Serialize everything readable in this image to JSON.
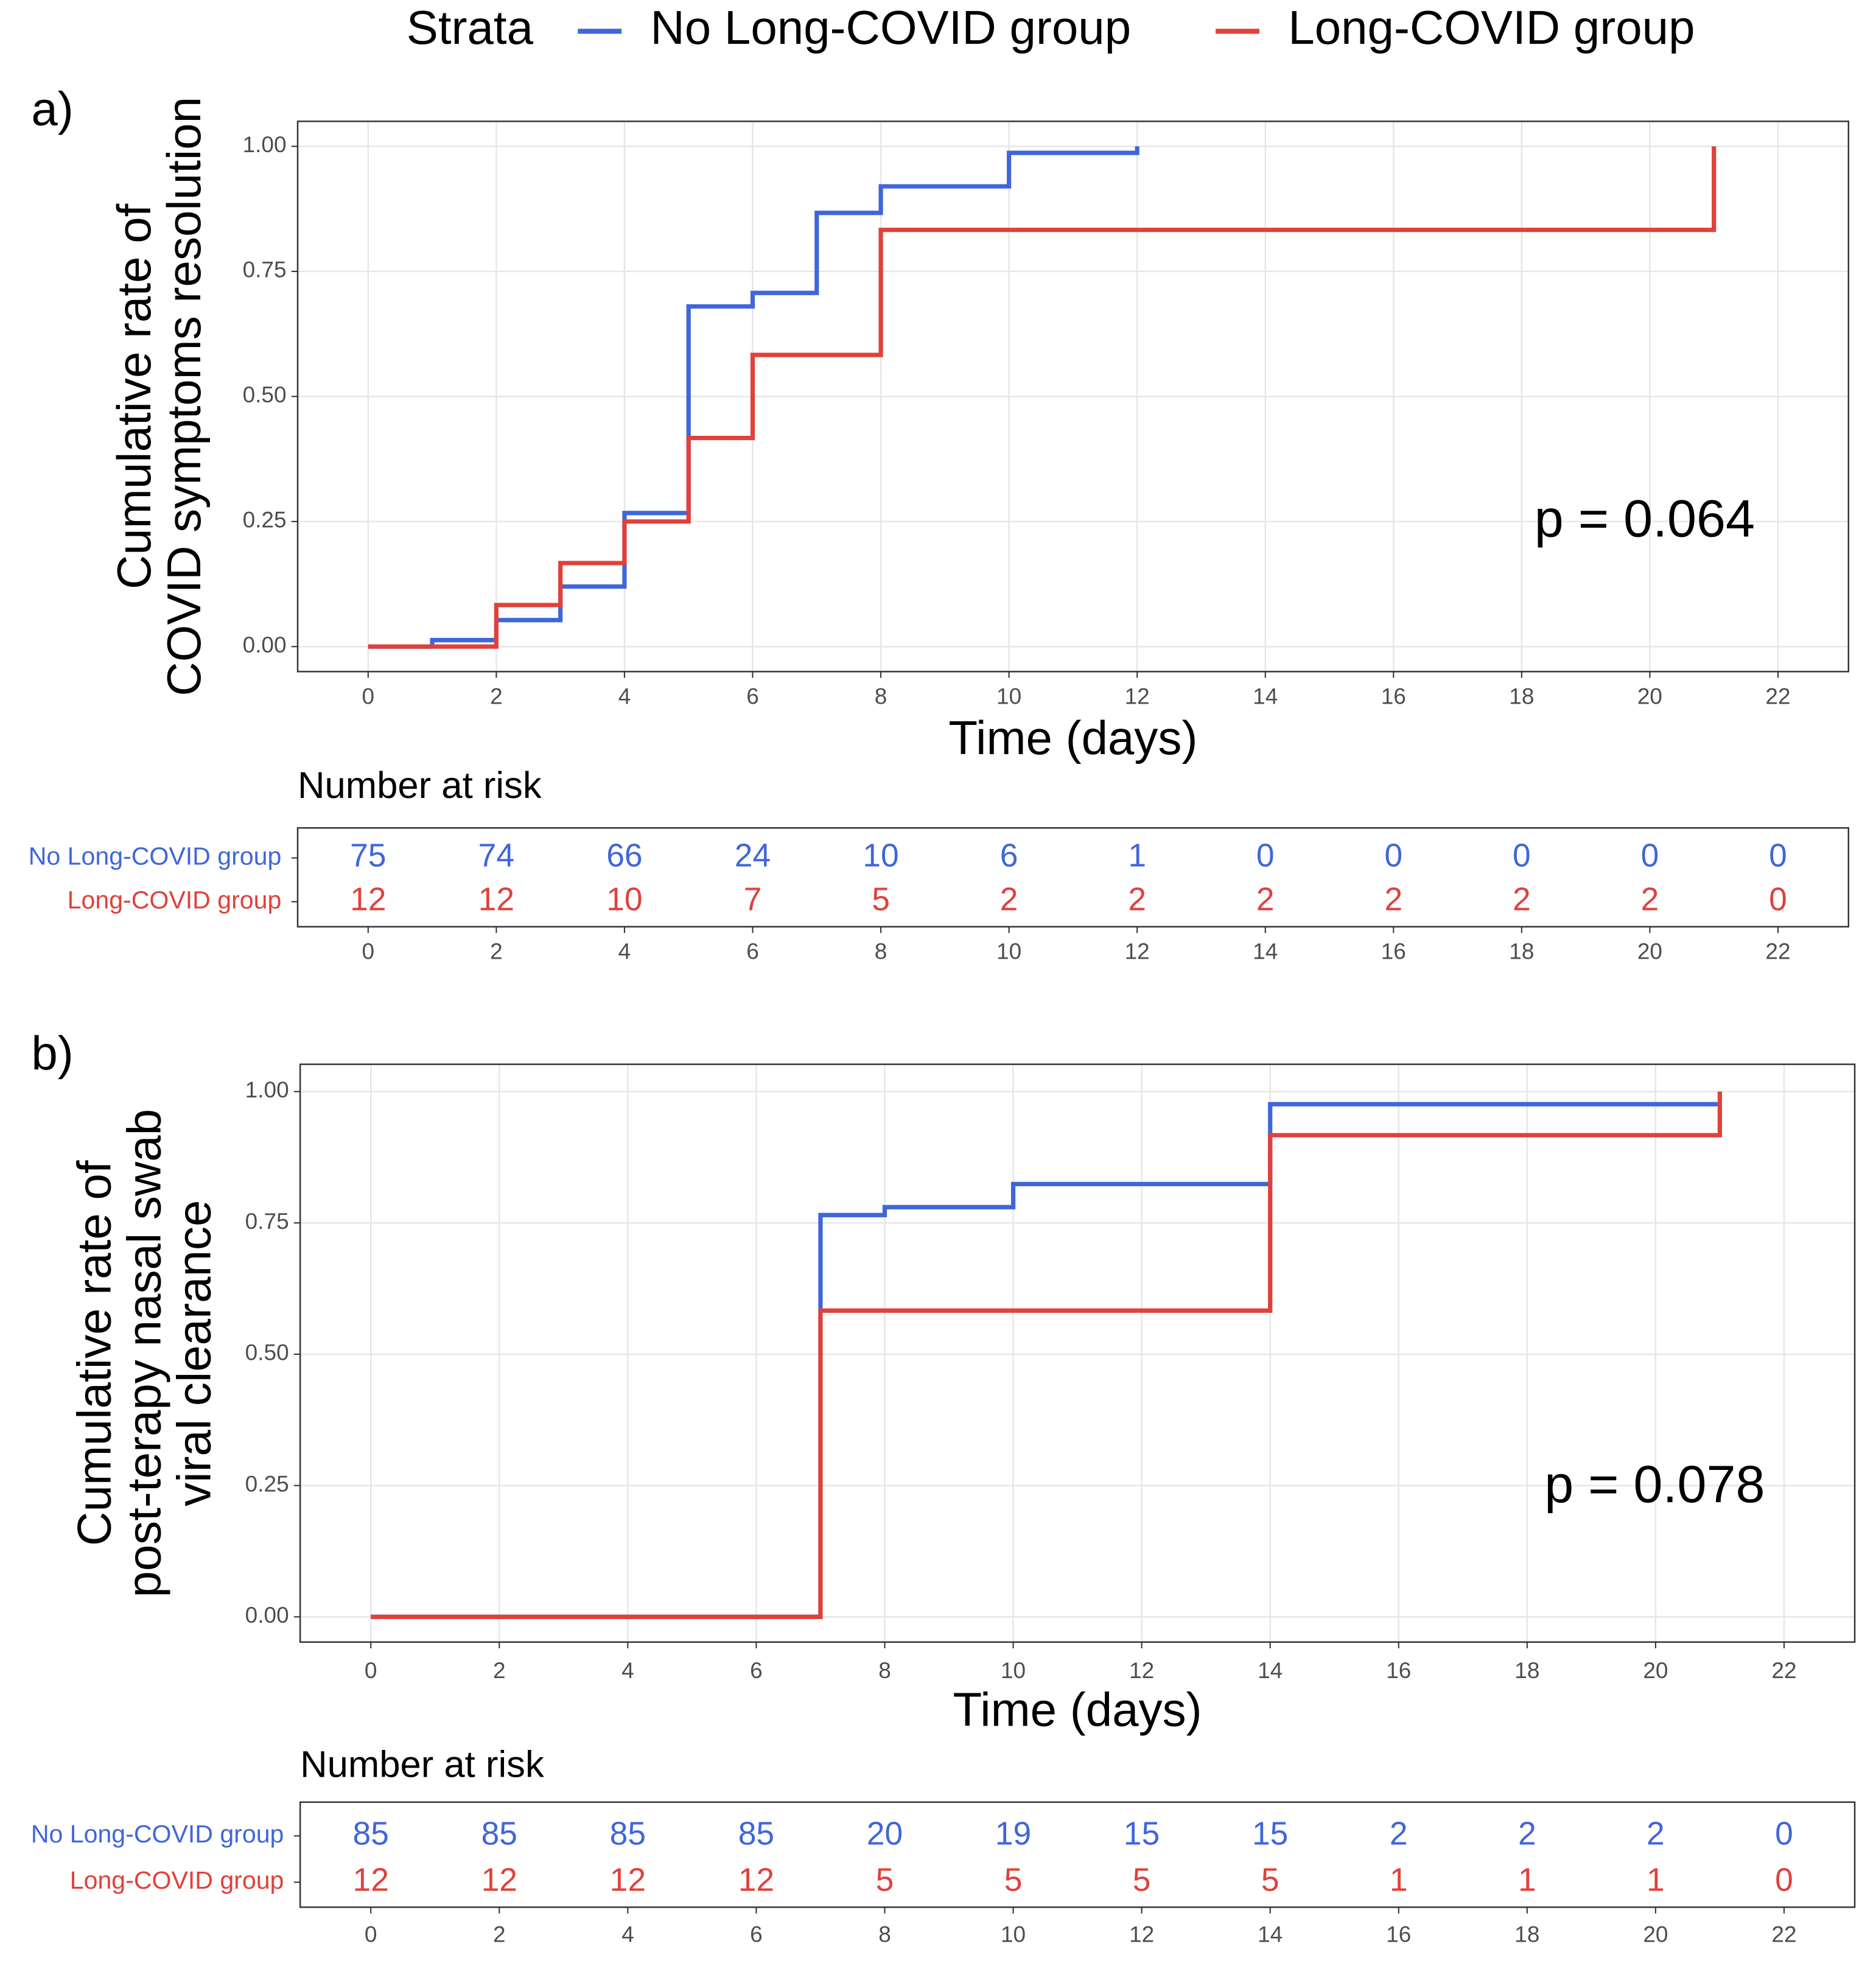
{
  "chart_data": [
    {
      "type": "line",
      "step": true,
      "panel_label": "a)",
      "legend_title": "Strata",
      "y_label": [
        "Cumulative rate of",
        "COVID symptoms resolution"
      ],
      "x_label": "Time (days)",
      "annotation": "p = 0.064",
      "xlim": [
        -1.1,
        23.1
      ],
      "ylim": [
        -0.05,
        1.05
      ],
      "xticks": [
        0,
        2,
        4,
        6,
        8,
        10,
        12,
        14,
        16,
        18,
        20,
        22
      ],
      "yticks": [
        {
          "value": 0,
          "label": "0.00"
        },
        {
          "value": 0.25,
          "label": "0.25"
        },
        {
          "value": 0.5,
          "label": "0.50"
        },
        {
          "value": 0.75,
          "label": "0.75"
        },
        {
          "value": 1,
          "label": "1.00"
        }
      ],
      "grid": true,
      "series": [
        {
          "name": "No Long-COVID group",
          "color": "#3f66da",
          "x": [
            0,
            1,
            2,
            3,
            4,
            5,
            6,
            7,
            8,
            10,
            12
          ],
          "values": [
            0,
            0.013,
            0.053,
            0.12,
            0.267,
            0.68,
            0.707,
            0.867,
            0.92,
            0.987,
            1.0
          ]
        },
        {
          "name": "Long-COVID group",
          "color": "#e0413a",
          "x": [
            0,
            2,
            3,
            4,
            5,
            6,
            8,
            21
          ],
          "values": [
            0,
            0.083,
            0.167,
            0.25,
            0.417,
            0.583,
            0.833,
            1.0
          ]
        }
      ],
      "risk_table": {
        "title": "Number at risk",
        "x": [
          0,
          2,
          4,
          6,
          8,
          10,
          12,
          14,
          16,
          18,
          20,
          22
        ],
        "rows": [
          [
            75,
            74,
            66,
            24,
            10,
            6,
            1,
            0,
            0,
            0,
            0,
            0
          ],
          [
            12,
            12,
            10,
            7,
            5,
            2,
            2,
            2,
            2,
            2,
            2,
            0
          ]
        ]
      }
    },
    {
      "type": "line",
      "step": true,
      "panel_label": "b)",
      "y_label": [
        "Cumulative rate of",
        "post-terapy nasal swab",
        "viral clearance"
      ],
      "x_label": "Time (days)",
      "annotation": "p = 0.078",
      "xlim": [
        -1.1,
        23.1
      ],
      "ylim": [
        -0.048,
        1.052
      ],
      "xticks": [
        0,
        2,
        4,
        6,
        8,
        10,
        12,
        14,
        16,
        18,
        20,
        22
      ],
      "yticks": [
        {
          "value": 0,
          "label": "0.00"
        },
        {
          "value": 0.25,
          "label": "0.25"
        },
        {
          "value": 0.5,
          "label": "0.50"
        },
        {
          "value": 0.75,
          "label": "0.75"
        },
        {
          "value": 1,
          "label": "1.00"
        }
      ],
      "grid": true,
      "series": [
        {
          "name": "No Long-COVID group",
          "color": "#3f66da",
          "x": [
            0,
            7,
            8,
            10,
            14,
            21
          ],
          "values": [
            0,
            0.765,
            0.78,
            0.824,
            0.976,
            0.976
          ]
        },
        {
          "name": "Long-COVID group",
          "color": "#e0413a",
          "x": [
            0,
            7,
            14,
            21,
            21
          ],
          "values": [
            0,
            0.583,
            0.917,
            0.917,
            1.0
          ]
        }
      ],
      "risk_table": {
        "title": "Number at risk",
        "x": [
          0,
          2,
          4,
          6,
          8,
          10,
          12,
          14,
          16,
          18,
          20,
          22
        ],
        "rows": [
          [
            85,
            85,
            85,
            85,
            20,
            19,
            15,
            15,
            2,
            2,
            2,
            0
          ],
          [
            12,
            12,
            12,
            12,
            5,
            5,
            5,
            5,
            1,
            1,
            1,
            0
          ]
        ]
      }
    }
  ]
}
